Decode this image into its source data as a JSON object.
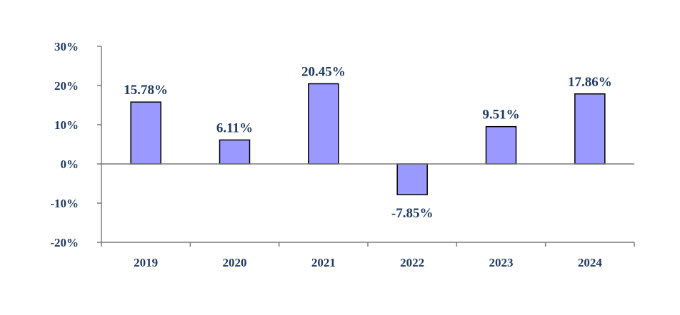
{
  "chart_data": {
    "type": "bar",
    "title": "",
    "xlabel": "",
    "ylabel": "",
    "categories": [
      "2019",
      "2020",
      "2021",
      "2022",
      "2023",
      "2024"
    ],
    "values": [
      15.78,
      6.11,
      20.45,
      -7.85,
      9.51,
      17.86
    ],
    "data_labels": [
      "15.78%",
      "6.11%",
      "20.45%",
      "-7.85%",
      "9.51%",
      "17.86%"
    ],
    "ylim": [
      -20,
      30
    ],
    "yticks": [
      -20,
      -10,
      0,
      10,
      20,
      30
    ],
    "ytick_labels": [
      "-20%",
      "-10%",
      "0%",
      "10%",
      "20%",
      "30%"
    ],
    "grid": false,
    "legend": "none",
    "bar_color": "#9999ff",
    "text_color": "#1f3a5f"
  }
}
